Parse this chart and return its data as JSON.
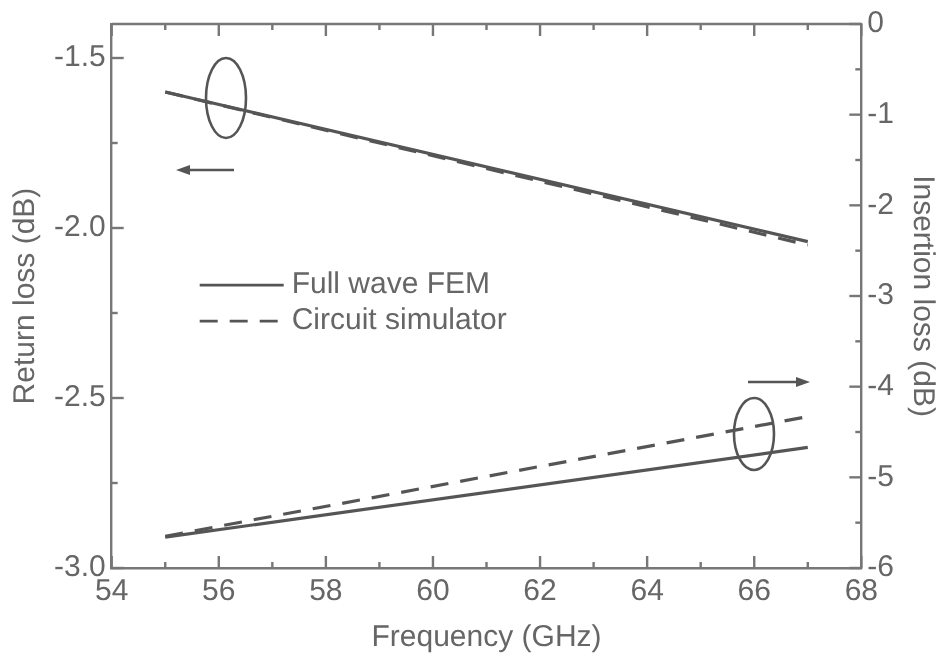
{
  "chart_data": {
    "type": "line",
    "xlabel": "Frequency (GHz)",
    "ylabel": "Return loss (dB)",
    "y2label": "Insertion loss (dB)",
    "x": [
      55,
      67
    ],
    "series": [
      {
        "name": "Full wave FEM",
        "color": "#555555",
        "line_style": "solid",
        "values": [
          -1.6,
          -2.04
        ]
      },
      {
        "name": "Circuit simulator",
        "color": "#555555",
        "line_style": "dashed",
        "values": [
          -1.6,
          -2.05
        ]
      },
      {
        "color": "#555555",
        "line_style": "solid",
        "axis": "y2",
        "values": [
          -5.66,
          -4.67
        ]
      },
      {
        "color": "#555555",
        "line_style": "dashed",
        "axis": "y2",
        "values": [
          -5.65,
          -4.33
        ]
      }
    ],
    "xlim": [
      54,
      68
    ],
    "xticks": [
      54,
      {
        "value": 55,
        "label": null
      },
      56,
      {
        "value": 57,
        "label": null
      },
      58,
      {
        "value": 59,
        "label": null
      },
      60,
      {
        "value": 61,
        "label": null
      },
      62,
      {
        "value": 63,
        "label": null
      },
      64,
      {
        "value": 65,
        "label": null
      },
      66,
      {
        "value": 67,
        "label": null
      },
      68
    ],
    "ylim": [
      -3.0,
      -1.4
    ],
    "yticks": [
      {
        "value": -3,
        "label": "-3.0"
      },
      {
        "value": -2.75,
        "label": null
      },
      {
        "value": -2.5,
        "label": "-2.5"
      },
      {
        "value": -2.25,
        "label": null
      },
      {
        "value": -2,
        "label": "-2.0"
      },
      {
        "value": -1.75,
        "label": null
      },
      {
        "value": -1.5,
        "label": "-1.5"
      }
    ],
    "y2lim": [
      -6,
      0
    ],
    "y2ticks": [
      -6,
      {
        "value": -5.5,
        "label": null
      },
      -5,
      {
        "value": -4.5,
        "label": null
      },
      -4,
      {
        "value": -3.5,
        "label": null
      },
      -3,
      {
        "value": -2.5,
        "label": null
      },
      -2,
      {
        "value": -1.5,
        "label": null
      },
      -1,
      {
        "value": -0.5,
        "label": null
      },
      0
    ],
    "grid": false,
    "legend": "left",
    "marker": "none"
  }
}
